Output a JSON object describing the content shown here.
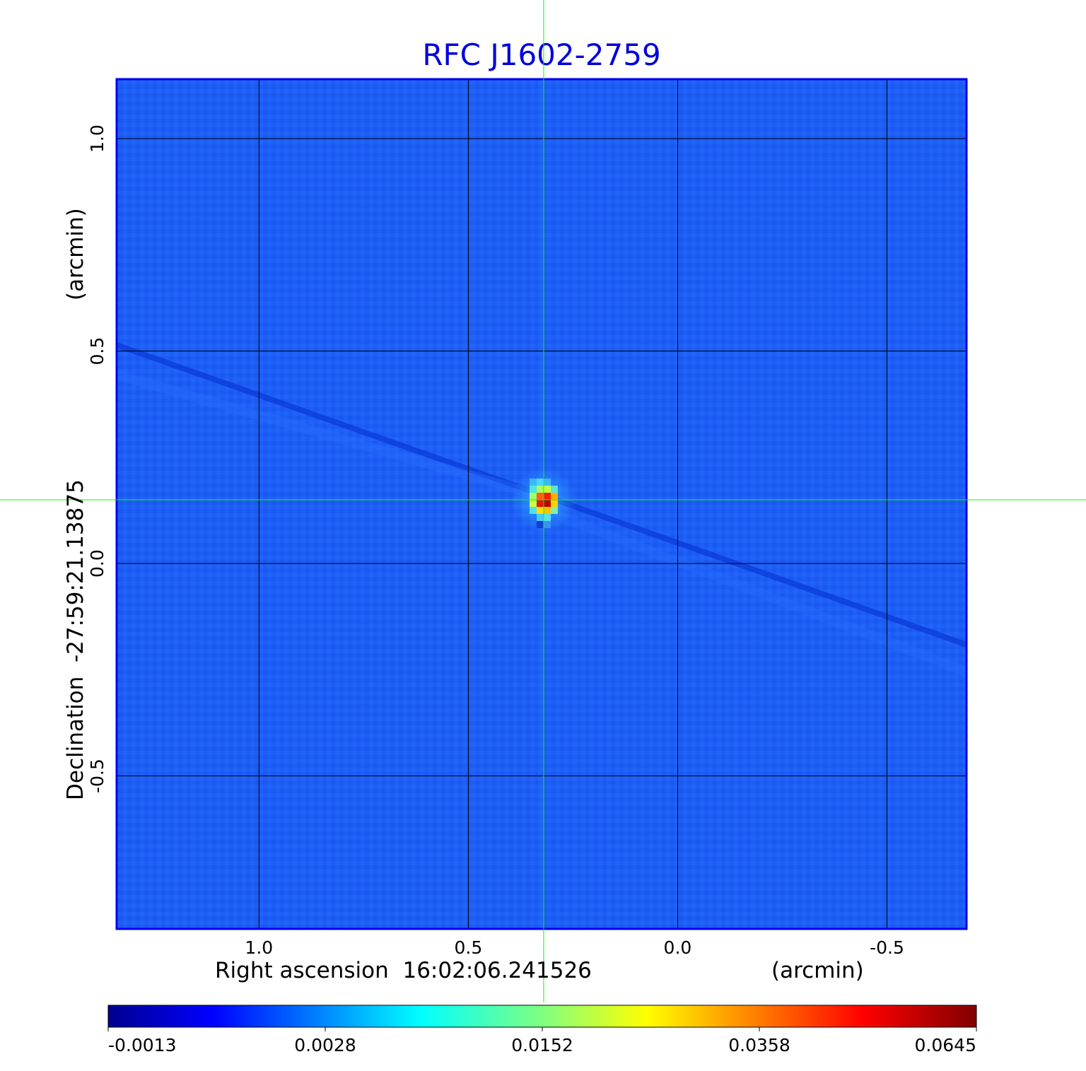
{
  "chart_data": {
    "type": "heatmap",
    "title": "RFC J1602-2759",
    "xlabel": "Right ascension  16:02:06.241526",
    "xlabel_unit": "(arcmin)",
    "ylabel": "Declination  -27:59:21.13875",
    "ylabel_unit": "(arcmin)",
    "x_ticks": [
      1.0,
      0.5,
      0.0,
      -0.5
    ],
    "x_tick_labels": [
      "1.0",
      "0.5",
      "0.0",
      "-0.5"
    ],
    "y_ticks": [
      1.0,
      0.5,
      0.0,
      -0.5
    ],
    "y_tick_labels": [
      "1.0",
      "0.5",
      "-0.5"
    ],
    "y_tick_zero_label": "0.0",
    "xlim": [
      1.34,
      -0.69
    ],
    "ylim": [
      -0.86,
      1.14
    ],
    "grid": true,
    "crosshair": {
      "ra_offset": 0.32,
      "dec_offset": 0.15,
      "color": "#00ff00"
    },
    "source_peak": {
      "ra_offset": 0.32,
      "dec_offset": 0.15,
      "value": 0.0645
    },
    "colormap": "jet",
    "colorbar": {
      "ticks": [
        -0.0013,
        0.0028,
        0.0152,
        0.0358,
        0.0645
      ],
      "tick_labels": [
        "-0.0013",
        "0.0028",
        "0.0152",
        "0.0358",
        "0.0645"
      ],
      "placement": "bottom"
    },
    "title_color": "#0000dd",
    "background_color": "#1a5cf5"
  }
}
